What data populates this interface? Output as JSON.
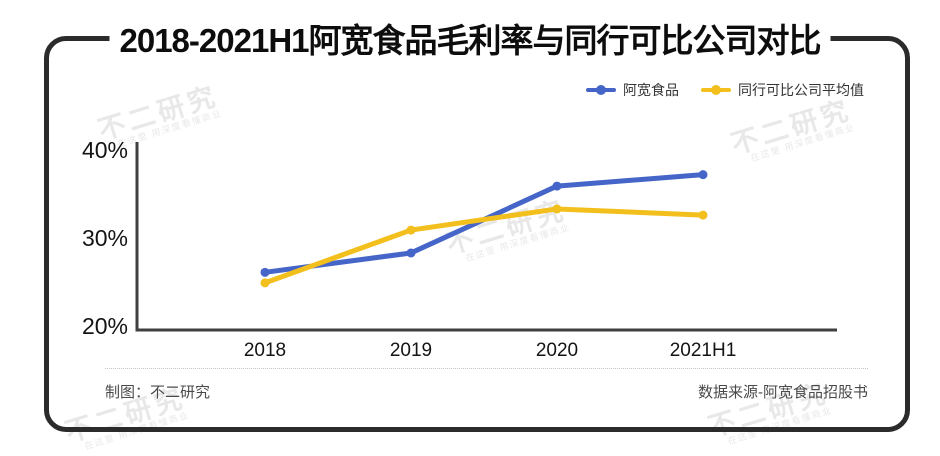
{
  "title": "2018-2021H1阿宽食品毛利率与同行可比公司对比",
  "footer": {
    "left": "制图：不二研究",
    "right": "数据来源-阿宽食品招股书"
  },
  "watermark": {
    "brand": "不二研究",
    "slogan": "在这里 用深度看懂商业"
  },
  "colors": {
    "frame": "#2b2b2b",
    "axis": "#3f3f3f",
    "series_blue": "#4565C8",
    "series_yellow": "#F3BF1C"
  },
  "chart_data": {
    "type": "line",
    "title": "2018-2021H1阿宽食品毛利率与同行可比公司对比",
    "categories": [
      "2018",
      "2019",
      "2020",
      "2021H1"
    ],
    "series": [
      {
        "name": "阿宽食品",
        "color": "#4565C8",
        "values": [
          26.1,
          28.3,
          35.9,
          37.2
        ]
      },
      {
        "name": "同行可比公司平均值",
        "color": "#F3BF1C",
        "values": [
          24.9,
          30.9,
          33.3,
          32.6
        ]
      }
    ],
    "yticks": [
      {
        "label": "40%",
        "value": 40
      },
      {
        "label": "30%",
        "value": 30
      },
      {
        "label": "20%",
        "value": 20
      }
    ],
    "ylim": [
      20,
      41
    ],
    "xlabel": "",
    "ylabel": "",
    "grid": false,
    "legend_position": "top-right"
  }
}
